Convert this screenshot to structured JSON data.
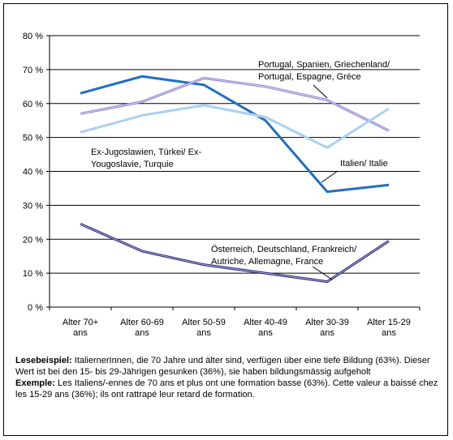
{
  "chart_data": {
    "type": "line",
    "categories": [
      [
        "Alter 70+",
        "ans"
      ],
      [
        "Alter 60-69",
        "ans"
      ],
      [
        "Alter 50-59",
        "ans"
      ],
      [
        "Alter 40-49",
        "ans"
      ],
      [
        "Alter 30-39",
        "ans"
      ],
      [
        "Alter 15-29",
        "ans"
      ]
    ],
    "ylim": [
      0,
      80
    ],
    "yticks": [
      0,
      10,
      20,
      30,
      40,
      50,
      60,
      70,
      80
    ],
    "ytick_labels": [
      "0 %",
      "10 %",
      "20 %",
      "30 %",
      "40 %",
      "50 %",
      "60 %",
      "70 %",
      "80 %"
    ],
    "grid": "horizontal",
    "series": [
      {
        "id": "italien",
        "values": [
          63,
          68,
          65.5,
          55,
          34,
          36
        ],
        "color": "#1f6fc6",
        "style": "thick",
        "label": [
          "Italien/ Italie"
        ]
      },
      {
        "id": "portugal",
        "values": [
          57,
          60.5,
          67.5,
          65,
          61,
          52
        ],
        "color": "#8a7fd6",
        "style": "double",
        "label": [
          "Portugal, Spanien, Griechenland/",
          "Portugal, Espagne, Grèce"
        ]
      },
      {
        "id": "jugoslawien",
        "values": [
          51.5,
          56.5,
          59.5,
          56,
          47,
          58.5
        ],
        "color": "#a9d1f2",
        "style": "thick",
        "label": [
          "Ex-Jugoslawien, Türkei/ Ex-",
          "Yougoslavie, Turquie"
        ]
      },
      {
        "id": "oesterreich",
        "values": [
          24.5,
          16.5,
          12.5,
          10,
          7.5,
          19.5
        ],
        "color": "#22227a",
        "style": "double",
        "label": [
          "Österreich, Deutschland, Frankreich/",
          "Autriche, Allemagne, France"
        ]
      }
    ]
  },
  "note": {
    "de_label": "Lesebeispiel:",
    "de_text": " ItaliernerInnen, die 70 Jahre und älter sind, verfügen über eine tiefe Bildung (63%). Dieser Wert ist bei den 15- bis 29-Jährigen gesunken (36%), sie haben bildungsmässig aufgeholt",
    "fr_label": "Exemple:",
    "fr_text": " Les Italiens/-ennes de 70 ans et plus ont une formation basse (63%). Cette valeur a baissé chez les 15-29 ans (36%); ils ont rattrapé leur retard de formation."
  }
}
